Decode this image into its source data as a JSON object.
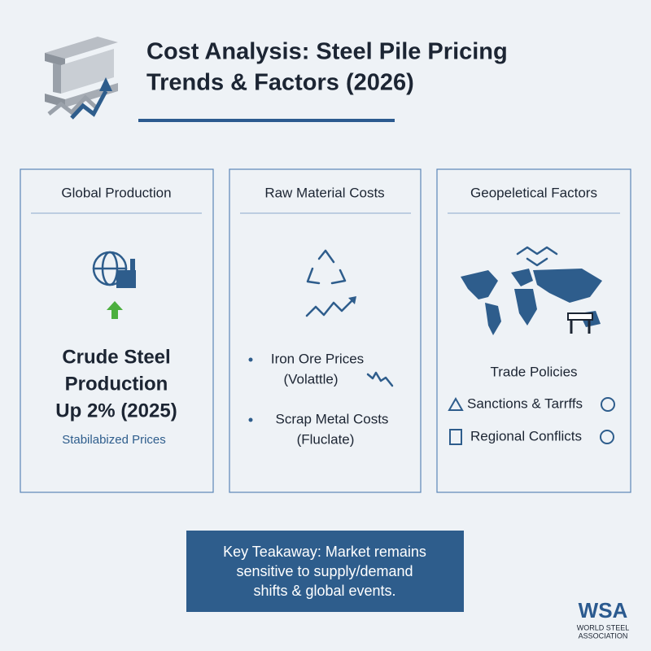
{
  "header": {
    "title_lines": [
      "Cost Analysis: Steel Pile Pricing",
      "Trends & Factors (2026)"
    ]
  },
  "panels": [
    {
      "heading": "Global Production",
      "headline_lines": [
        "Crude Steel",
        "Production",
        "Up 2% (2025)"
      ],
      "note": "Stabilabized Prices"
    },
    {
      "heading": "Raw Material Costs",
      "items": [
        {
          "label": "Iron Ore Prices",
          "note": "(Volattle)"
        },
        {
          "label": "Scrap Metal Costs",
          "note": "(Fluclate)"
        }
      ]
    },
    {
      "heading": "Geopeletical Factors",
      "items": [
        "Trade Policies",
        "Sanctions & Tarrffs",
        "Regional Conflicts"
      ]
    }
  ],
  "takeaway": {
    "lines": [
      "Key Teakaway: Market remains",
      "sensitive to supply/demand",
      "shifts & global events."
    ]
  },
  "logo": {
    "mark": "WSA",
    "lines": [
      "WORLD STEEL",
      "ASSOCIATION"
    ]
  }
}
